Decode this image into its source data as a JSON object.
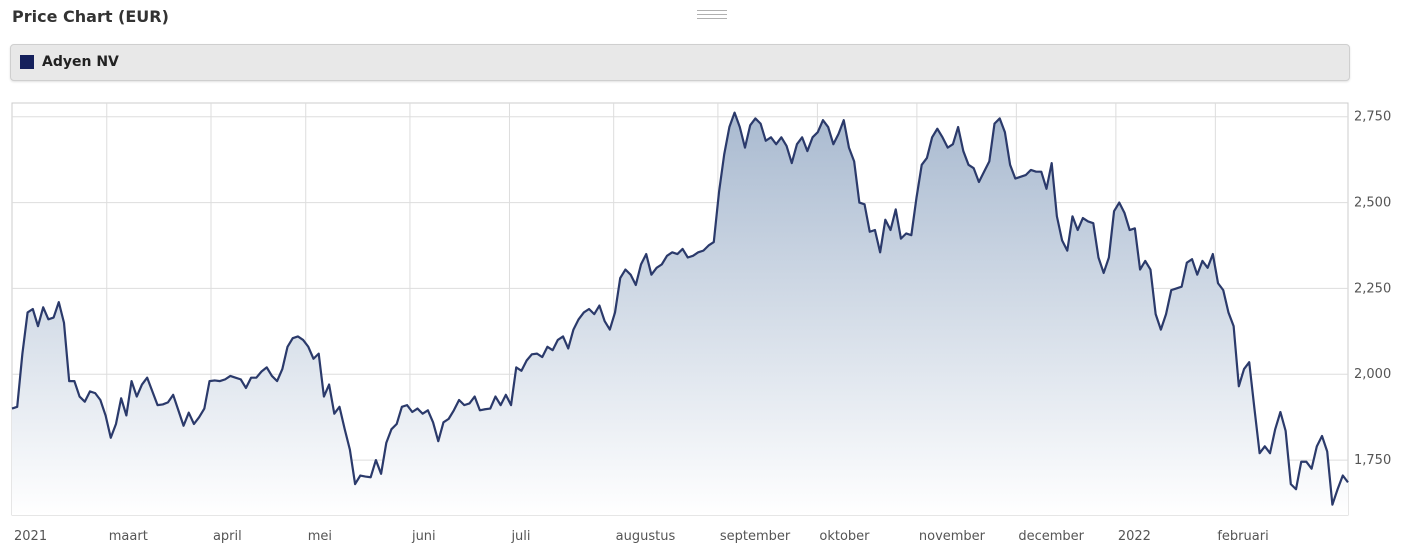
{
  "header": {
    "title": "Price Chart (EUR)"
  },
  "legend": {
    "items": [
      {
        "label": "Adyen NV",
        "color": "#15205c"
      }
    ]
  },
  "colors": {
    "line": "#2b3a6b",
    "fill_top": "#a9bad0",
    "fill_bottom": "#ffffff",
    "grid": "#dddddd",
    "axis": "#cccccc"
  },
  "chart_data": {
    "type": "area",
    "series": [
      {
        "name": "Adyen NV",
        "x_start": 0,
        "x_end": 282,
        "values": [
          1900,
          1905,
          2060,
          2180,
          2190,
          2140,
          2195,
          2160,
          2165,
          2210,
          2150,
          1980,
          1980,
          1935,
          1920,
          1950,
          1945,
          1925,
          1880,
          1815,
          1855,
          1930,
          1880,
          1980,
          1935,
          1970,
          1990,
          1950,
          1910,
          1912,
          1918,
          1940,
          1895,
          1850,
          1888,
          1855,
          1875,
          1900,
          1980,
          1982,
          1980,
          1985,
          1995,
          1990,
          1985,
          1960,
          1990,
          1990,
          2008,
          2020,
          1995,
          1980,
          2015,
          2080,
          2105,
          2110,
          2100,
          2080,
          2045,
          2060,
          1935,
          1970,
          1885,
          1905,
          1840,
          1780,
          1680,
          1705,
          1702,
          1700,
          1750,
          1710,
          1800,
          1840,
          1855,
          1905,
          1910,
          1890,
          1900,
          1885,
          1895,
          1860,
          1805,
          1860,
          1870,
          1895,
          1925,
          1910,
          1915,
          1935,
          1895,
          1898,
          1900,
          1935,
          1910,
          1940,
          1910,
          2020,
          2010,
          2040,
          2058,
          2060,
          2050,
          2080,
          2070,
          2100,
          2110,
          2075,
          2130,
          2160,
          2180,
          2190,
          2175,
          2200,
          2155,
          2130,
          2180,
          2280,
          2305,
          2290,
          2260,
          2320,
          2350,
          2290,
          2310,
          2320,
          2345,
          2355,
          2350,
          2365,
          2340,
          2345,
          2355,
          2360,
          2375,
          2385,
          2530,
          2640,
          2720,
          2762,
          2720,
          2660,
          2725,
          2745,
          2730,
          2680,
          2690,
          2670,
          2690,
          2665,
          2615,
          2670,
          2690,
          2650,
          2690,
          2705,
          2740,
          2720,
          2670,
          2700,
          2740,
          2660,
          2620,
          2500,
          2495,
          2415,
          2420,
          2355,
          2450,
          2420,
          2480,
          2395,
          2410,
          2405,
          2515,
          2610,
          2630,
          2690,
          2715,
          2690,
          2660,
          2670,
          2720,
          2650,
          2610,
          2600,
          2560,
          2590,
          2620,
          2730,
          2745,
          2705,
          2610,
          2570,
          2575,
          2580,
          2595,
          2590,
          2590,
          2540,
          2615,
          2460,
          2390,
          2360,
          2460,
          2420,
          2455,
          2445,
          2440,
          2340,
          2295,
          2340,
          2475,
          2500,
          2470,
          2420,
          2425,
          2305,
          2330,
          2305,
          2175,
          2130,
          2175,
          2245,
          2250,
          2255,
          2325,
          2335,
          2290,
          2330,
          2310,
          2350,
          2265,
          2245,
          2180,
          2140,
          1965,
          2015,
          2035,
          1900,
          1770,
          1790,
          1770,
          1840,
          1890,
          1835,
          1680,
          1665,
          1745,
          1745,
          1725,
          1790,
          1820,
          1775,
          1620,
          1665,
          1705,
          1685
        ]
      }
    ],
    "x_tick_labels": [
      {
        "label": "2021",
        "index": 0
      },
      {
        "label": "maart",
        "index": 20
      },
      {
        "label": "april",
        "index": 42
      },
      {
        "label": "mei",
        "index": 62
      },
      {
        "label": "juni",
        "index": 84
      },
      {
        "label": "juli",
        "index": 105
      },
      {
        "label": "augustus",
        "index": 127
      },
      {
        "label": "september",
        "index": 149
      },
      {
        "label": "oktober",
        "index": 170
      },
      {
        "label": "november",
        "index": 191
      },
      {
        "label": "december",
        "index": 212
      },
      {
        "label": "2022",
        "index": 233
      },
      {
        "label": "februari",
        "index": 254
      }
    ],
    "y_ticks": [
      1750,
      2000,
      2250,
      2500,
      2750
    ],
    "y_tick_labels": [
      "1,750",
      "2,000",
      "2,250",
      "2,500",
      "2,750"
    ],
    "ylim": [
      1590,
      2790
    ],
    "grid": true,
    "y_axis_side": "right"
  }
}
